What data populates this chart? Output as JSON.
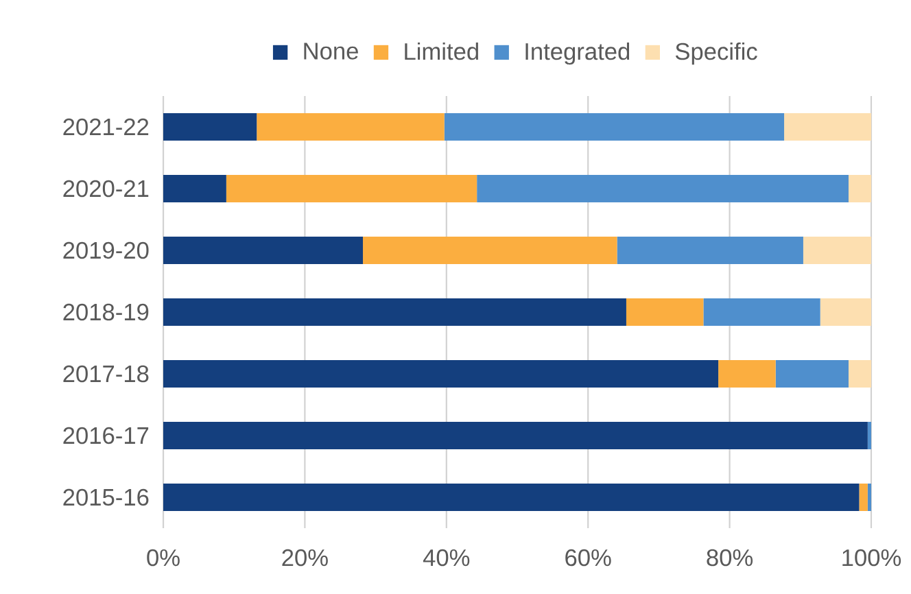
{
  "chart_data": {
    "type": "bar",
    "orientation": "horizontal",
    "stacked": true,
    "categories": [
      "2021-22",
      "2020-21",
      "2019-20",
      "2018-19",
      "2017-18",
      "2016-17",
      "2015-16"
    ],
    "series": [
      {
        "name": "None",
        "color": "#143f7e",
        "values": [
          13.2,
          8.9,
          28.2,
          65.4,
          78.4,
          99.5,
          98.3
        ]
      },
      {
        "name": "Limited",
        "color": "#fbae40",
        "values": [
          26.5,
          35.4,
          35.9,
          10.9,
          8.1,
          0,
          1.2
        ]
      },
      {
        "name": "Integrated",
        "color": "#4f8fcd",
        "values": [
          48.0,
          52.5,
          26.3,
          16.5,
          10.3,
          0.5,
          0.5
        ]
      },
      {
        "name": "Specific",
        "color": "#fddfb0",
        "values": [
          12.3,
          3.2,
          9.6,
          7.2,
          3.2,
          0,
          0
        ]
      }
    ],
    "xlim": [
      0,
      100
    ],
    "xticks": [
      {
        "value": 0,
        "label": "0%"
      },
      {
        "value": 20,
        "label": "20%"
      },
      {
        "value": 40,
        "label": "40%"
      },
      {
        "value": 60,
        "label": "60%"
      },
      {
        "value": 80,
        "label": "80%"
      },
      {
        "value": 100,
        "label": "100%"
      }
    ],
    "grid": "x",
    "legend": "top"
  }
}
